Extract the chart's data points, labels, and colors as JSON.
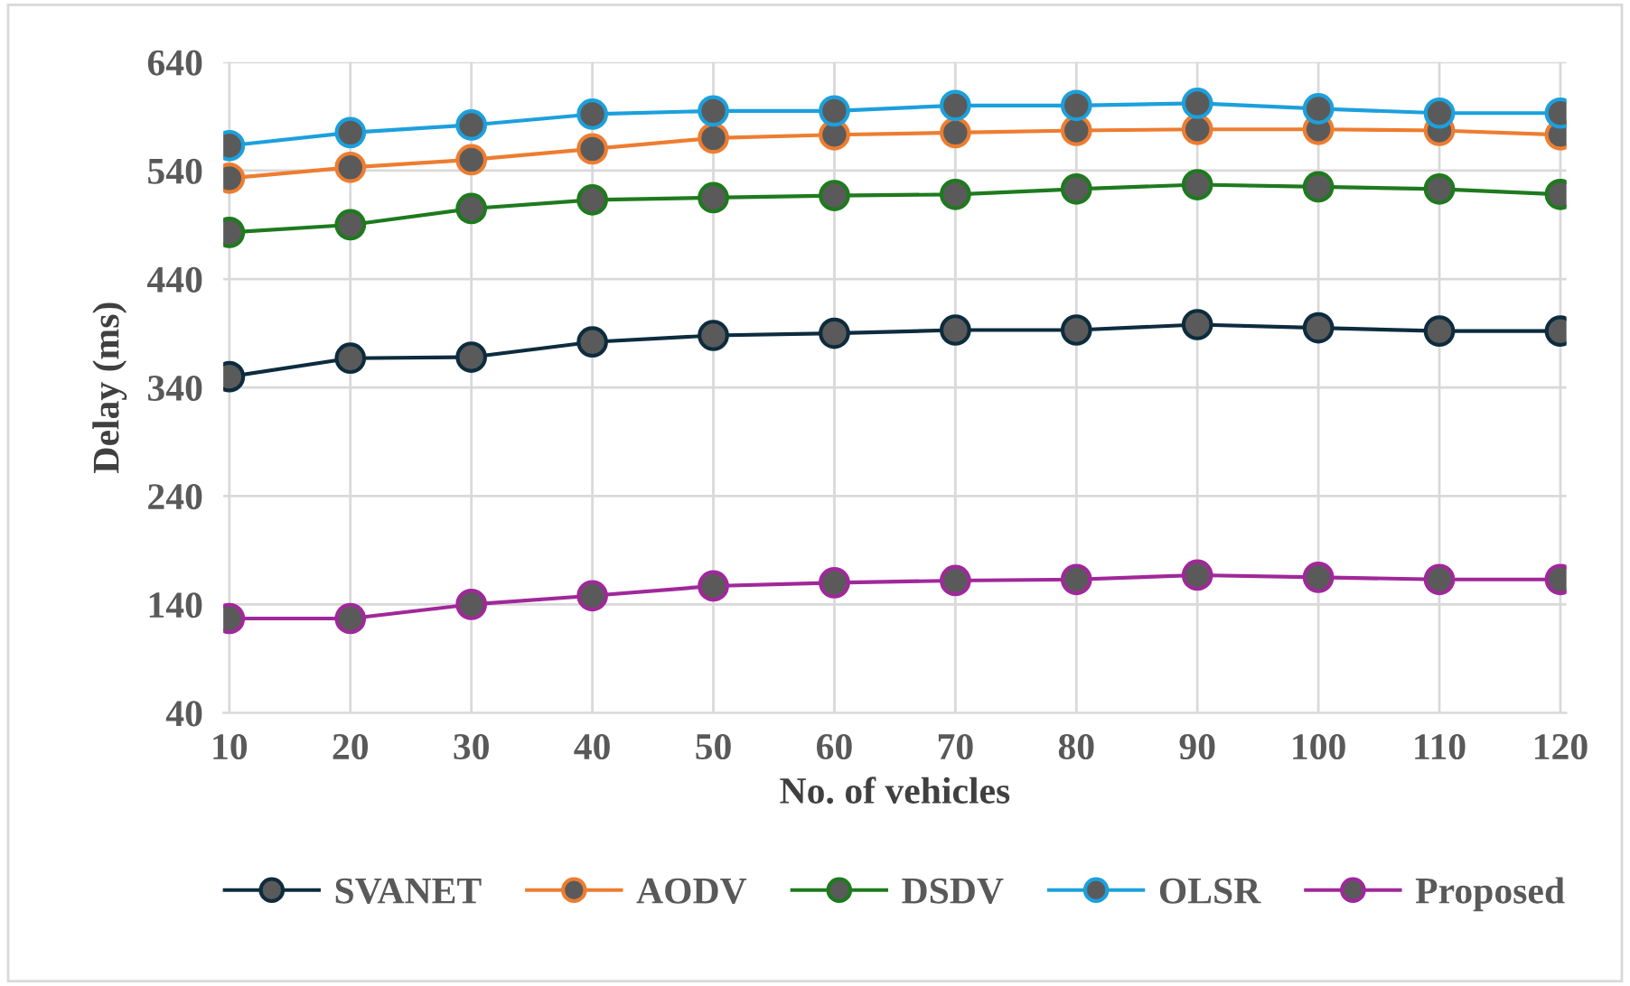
{
  "chart_data": {
    "type": "line",
    "xlabel": "No. of vehicles",
    "ylabel": "Delay (ms)",
    "categories": [
      "10",
      "20",
      "30",
      "40",
      "50",
      "60",
      "70",
      "80",
      "90",
      "100",
      "110",
      "120"
    ],
    "series": [
      {
        "name": "SVANET",
        "color": "#0d2c3e",
        "values": [
          350,
          367,
          368,
          382,
          388,
          390,
          393,
          393,
          398,
          395,
          392,
          392
        ]
      },
      {
        "name": "AODV",
        "color": "#ed7d31",
        "values": [
          533,
          543,
          550,
          560,
          570,
          573,
          575,
          577,
          578,
          578,
          577,
          573
        ]
      },
      {
        "name": "DSDV",
        "color": "#1e7a1e",
        "values": [
          483,
          490,
          505,
          513,
          515,
          517,
          518,
          523,
          527,
          525,
          523,
          518
        ]
      },
      {
        "name": "OLSR",
        "color": "#1ca0dc",
        "values": [
          563,
          575,
          582,
          592,
          595,
          595,
          600,
          600,
          602,
          597,
          593,
          593
        ]
      },
      {
        "name": "Proposed",
        "color": "#a0289a",
        "values": [
          127,
          127,
          140,
          148,
          157,
          160,
          162,
          163,
          167,
          165,
          163,
          163
        ]
      }
    ],
    "ylim": [
      40,
      640
    ],
    "yticks": [
      40,
      140,
      240,
      340,
      440,
      540,
      640
    ],
    "grid": true,
    "legend": "bottom",
    "marker": "circle",
    "line_style": "solid"
  }
}
